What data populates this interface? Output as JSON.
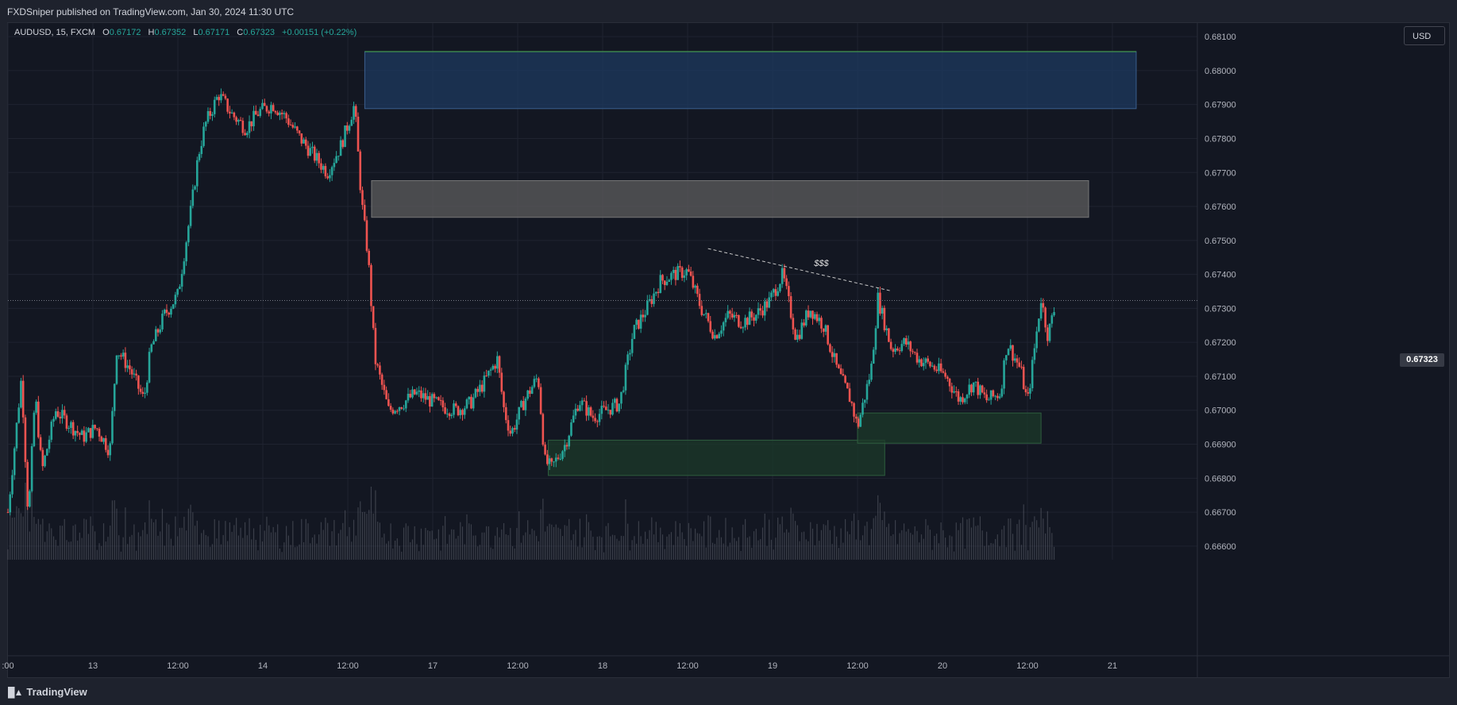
{
  "header": {
    "publisher": "FXDSniper published on TradingView.com, Jan 30, 2024 11:30 UTC"
  },
  "legend": {
    "symbol": "AUDUSD, 15, FXCM",
    "o_label": "O",
    "o": "0.67172",
    "h_label": "H",
    "h": "0.67352",
    "l_label": "L",
    "l": "0.67171",
    "c_label": "C",
    "c": "0.67323",
    "change": "+0.00151 (+0.22%)"
  },
  "currency_button": "USD",
  "last_price": "0.67323",
  "footer": {
    "brand": "TradingView"
  },
  "colors": {
    "up": "#26a69a",
    "down": "#ef5350",
    "background": "#131722",
    "supply_zone": "#1e3a5f",
    "mid_zone": "#5d5d5d",
    "demand_zone": "#1c3a2a"
  },
  "chart_data": {
    "type": "candlestick",
    "y_axis": {
      "ylim": [
        0.6656,
        0.6814
      ],
      "tick_labels": [
        "0.68100",
        "0.68000",
        "0.67900",
        "0.67800",
        "0.67700",
        "0.67600",
        "0.67500",
        "0.67400",
        "0.67300",
        "0.67200",
        "0.67100",
        "0.67000",
        "0.66900",
        "0.66800",
        "0.66700",
        "0.66600"
      ],
      "tick_values": [
        0.681,
        0.68,
        0.679,
        0.678,
        0.677,
        0.676,
        0.675,
        0.674,
        0.673,
        0.672,
        0.671,
        0.67,
        0.669,
        0.668,
        0.667,
        0.666
      ]
    },
    "x_axis": {
      "tick_labels": [
        ":00",
        "13",
        "12:00",
        "14",
        "12:00",
        "17",
        "12:00",
        "18",
        "12:00",
        "19",
        "12:00",
        "20",
        "12:00",
        "21"
      ],
      "tick_index": [
        0,
        12.5,
        25,
        37.5,
        50,
        62.5,
        75,
        87.5,
        100,
        112.5,
        125,
        137.5,
        150,
        162.5
      ]
    },
    "price_path": [
      [
        0,
        0.667
      ],
      [
        2,
        0.671
      ],
      [
        3,
        0.6668
      ],
      [
        4,
        0.6705
      ],
      [
        5,
        0.6682
      ],
      [
        7,
        0.67
      ],
      [
        9,
        0.6696
      ],
      [
        11,
        0.6692
      ],
      [
        13,
        0.6695
      ],
      [
        15,
        0.6688
      ],
      [
        16,
        0.6718
      ],
      [
        18,
        0.6712
      ],
      [
        20,
        0.6703
      ],
      [
        21,
        0.6718
      ],
      [
        23,
        0.6728
      ],
      [
        25,
        0.6734
      ],
      [
        27,
        0.676
      ],
      [
        28,
        0.6775
      ],
      [
        29,
        0.6784
      ],
      [
        31,
        0.6793
      ],
      [
        33,
        0.6787
      ],
      [
        35,
        0.6783
      ],
      [
        37,
        0.6788
      ],
      [
        39,
        0.679
      ],
      [
        41,
        0.6786
      ],
      [
        43,
        0.678
      ],
      [
        45,
        0.6775
      ],
      [
        47,
        0.677
      ],
      [
        49,
        0.6778
      ],
      [
        51,
        0.679
      ],
      [
        52,
        0.6762
      ],
      [
        53,
        0.6745
      ],
      [
        54,
        0.6715
      ],
      [
        56,
        0.67
      ],
      [
        58,
        0.6702
      ],
      [
        60,
        0.6705
      ],
      [
        62,
        0.6703
      ],
      [
        64,
        0.6701
      ],
      [
        66,
        0.67
      ],
      [
        68,
        0.6702
      ],
      [
        70,
        0.6708
      ],
      [
        72,
        0.6715
      ],
      [
        73,
        0.67
      ],
      [
        74,
        0.6693
      ],
      [
        76,
        0.6703
      ],
      [
        78,
        0.671
      ],
      [
        79,
        0.6685
      ],
      [
        80,
        0.6683
      ],
      [
        82,
        0.669
      ],
      [
        84,
        0.6703
      ],
      [
        86,
        0.6698
      ],
      [
        88,
        0.67
      ],
      [
        90,
        0.6702
      ],
      [
        92,
        0.6723
      ],
      [
        94,
        0.673
      ],
      [
        96,
        0.6738
      ],
      [
        98,
        0.674
      ],
      [
        100,
        0.6741
      ],
      [
        102,
        0.673
      ],
      [
        104,
        0.6722
      ],
      [
        106,
        0.6728
      ],
      [
        108,
        0.6726
      ],
      [
        110,
        0.6728
      ],
      [
        112,
        0.6732
      ],
      [
        114,
        0.674
      ],
      [
        116,
        0.6721
      ],
      [
        118,
        0.673
      ],
      [
        120,
        0.6725
      ],
      [
        122,
        0.6712
      ],
      [
        124,
        0.6703
      ],
      [
        125,
        0.6695
      ],
      [
        127,
        0.6712
      ],
      [
        128,
        0.6733
      ],
      [
        130,
        0.6718
      ],
      [
        132,
        0.672
      ],
      [
        134,
        0.6715
      ],
      [
        136,
        0.6713
      ],
      [
        138,
        0.671
      ],
      [
        140,
        0.6703
      ],
      [
        142,
        0.6708
      ],
      [
        144,
        0.6703
      ],
      [
        146,
        0.6705
      ],
      [
        147,
        0.672
      ],
      [
        149,
        0.6712
      ],
      [
        150,
        0.6702
      ],
      [
        152,
        0.6733
      ],
      [
        153,
        0.6722
      ],
      [
        154,
        0.673
      ]
    ],
    "zones": [
      {
        "name": "supply",
        "from_index": 52.5,
        "to_index": 166,
        "y_top": 0.68056,
        "y_bottom": 0.67888
      },
      {
        "name": "mid",
        "from_index": 53.5,
        "to_index": 159,
        "y_top": 0.67676,
        "y_bottom": 0.67568
      },
      {
        "name": "demand-1",
        "from_index": 79.5,
        "to_index": 129,
        "y_top": 0.66912,
        "y_bottom": 0.66808
      },
      {
        "name": "demand-2",
        "from_index": 125,
        "to_index": 152,
        "y_top": 0.66992,
        "y_bottom": 0.66903
      }
    ],
    "trendline": {
      "from": [
        103,
        0.67476
      ],
      "to": [
        130,
        0.67351
      ],
      "label": "$$$"
    },
    "last_close": 0.67323
  }
}
